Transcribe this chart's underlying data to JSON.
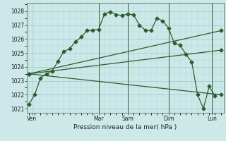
{
  "background_color": "#cce8e8",
  "grid_major_color": "#99cccc",
  "grid_minor_color": "#b3d9d9",
  "line_color": "#2d5c2d",
  "ylabel_ticks": [
    1021,
    1022,
    1023,
    1024,
    1025,
    1026,
    1027,
    1028
  ],
  "ylim": [
    1020.7,
    1028.6
  ],
  "xlim": [
    -0.3,
    33.5
  ],
  "xlabel": "Pression niveau de la mer( hPa )",
  "day_labels": [
    "Ven",
    "Mar",
    "Sam",
    "Dim",
    "Lun"
  ],
  "day_positions": [
    0.5,
    12,
    17,
    24,
    31.5
  ],
  "vline_positions": [
    12,
    17,
    24,
    31.5
  ],
  "series1_x": [
    0,
    1,
    2,
    3,
    4,
    5,
    6,
    7,
    8,
    9,
    10,
    11,
    12,
    13,
    14,
    15,
    16,
    17,
    18,
    19,
    20,
    21,
    22,
    23,
    24,
    25,
    26,
    27,
    28,
    29,
    30,
    31,
    32
  ],
  "series1_y": [
    1021.3,
    1022.0,
    1023.2,
    1023.5,
    1023.7,
    1024.4,
    1025.1,
    1025.3,
    1025.8,
    1026.15,
    1026.6,
    1026.65,
    1026.7,
    1027.8,
    1027.95,
    1027.75,
    1027.7,
    1027.8,
    1027.75,
    1027.0,
    1026.65,
    1026.6,
    1027.5,
    1027.3,
    1026.8,
    1025.7,
    1025.55,
    1024.9,
    1024.35,
    1022.0,
    1021.0,
    1022.6,
    1021.9
  ],
  "fan_origin_x": 0,
  "fan_origin_y": 1023.5,
  "series2_x": [
    0,
    33
  ],
  "series2_y": [
    1023.5,
    1026.6
  ],
  "series3_x": [
    0,
    33
  ],
  "series3_y": [
    1023.5,
    1025.2
  ],
  "series4_x": [
    0,
    33
  ],
  "series4_y": [
    1023.5,
    1022.0
  ]
}
